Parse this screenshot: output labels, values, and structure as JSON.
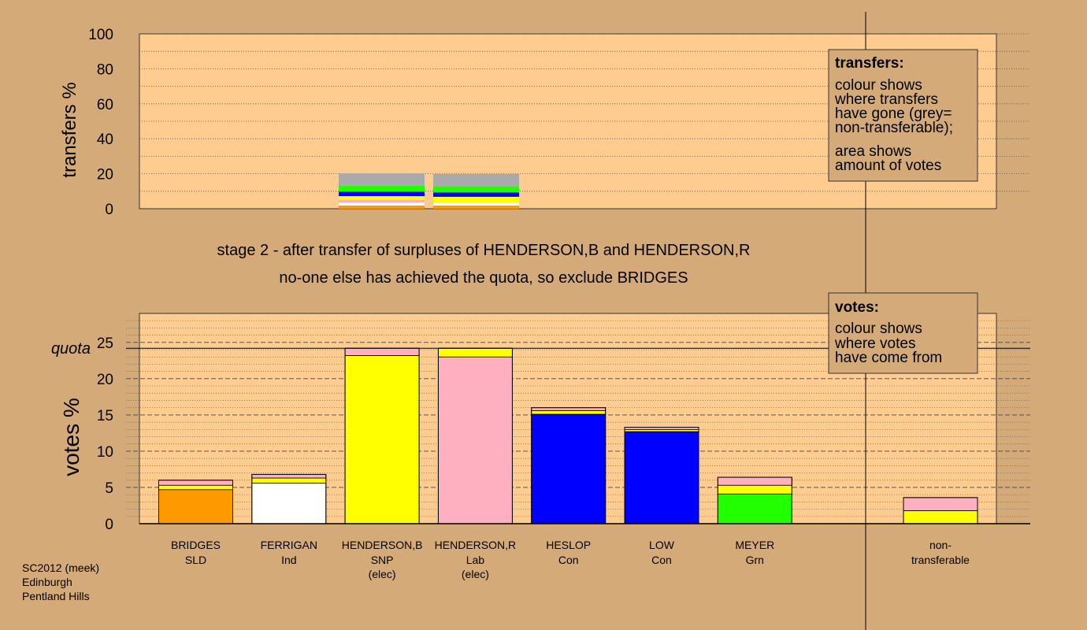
{
  "colors": {
    "background": "#d4aa78",
    "panel": "#ffcc90",
    "legend_box": "#d4aa78",
    "SNP": "#ffff00",
    "Lab": "#ffb0c0",
    "Con": "#0000ff",
    "SLD": "#ff9900",
    "Ind": "#ffffff",
    "Grn": "#22ff00",
    "non_transferable": "#aaaaaa"
  },
  "chart_data": [
    {
      "type": "bar",
      "name": "transfers",
      "ylabel": "transfers %",
      "ylim": [
        0,
        100
      ],
      "yticks": [
        0,
        20,
        40,
        60,
        80,
        100
      ],
      "bars": [
        {
          "candidate": "HENDERSON,B",
          "segments": [
            {
              "party": "SLD",
              "value": 1.8
            },
            {
              "party": "Ind",
              "value": 1.7
            },
            {
              "party": "Lab",
              "value": 1.5
            },
            {
              "party": "SNP",
              "value": 2.2
            },
            {
              "party": "Con",
              "value": 2.5
            },
            {
              "party": "Grn",
              "value": 3.5
            },
            {
              "party": "non_transferable",
              "value": 7.0
            }
          ]
        },
        {
          "candidate": "HENDERSON,R",
          "segments": [
            {
              "party": "SLD",
              "value": 1.8
            },
            {
              "party": "Ind",
              "value": 1.5
            },
            {
              "party": "SNP",
              "value": 3.5
            },
            {
              "party": "Con",
              "value": 2.5
            },
            {
              "party": "Grn",
              "value": 3.5
            },
            {
              "party": "non_transferable",
              "value": 7.0
            }
          ]
        }
      ],
      "legend": {
        "title": "transfers:",
        "lines": [
          "colour shows",
          "where transfers",
          "have gone (grey=",
          "non-transferable);",
          "area shows",
          "amount of votes"
        ]
      }
    },
    {
      "type": "bar",
      "name": "votes",
      "ylabel": "votes %",
      "ylim": [
        0,
        29
      ],
      "yticks": [
        0,
        5,
        10,
        15,
        20,
        25
      ],
      "quota": 24.2,
      "quota_label": "quota",
      "candidates": [
        {
          "name": "BRIDGES",
          "party_label": "SLD",
          "elected": "",
          "segments": [
            {
              "party": "SLD",
              "value": 4.7
            },
            {
              "party": "SNP",
              "value": 0.6
            },
            {
              "party": "Lab",
              "value": 0.7
            }
          ]
        },
        {
          "name": "FERRIGAN",
          "party_label": "Ind",
          "elected": "",
          "segments": [
            {
              "party": "Ind",
              "value": 5.6
            },
            {
              "party": "SNP",
              "value": 0.7
            },
            {
              "party": "Lab",
              "value": 0.5
            }
          ]
        },
        {
          "name": "HENDERSON,B",
          "party_label": "SNP",
          "elected": "(elec)",
          "segments": [
            {
              "party": "SNP",
              "value": 23.2
            },
            {
              "party": "Lab",
              "value": 1.0
            }
          ]
        },
        {
          "name": "HENDERSON,R",
          "party_label": "Lab",
          "elected": "(elec)",
          "segments": [
            {
              "party": "Lab",
              "value": 23.0
            },
            {
              "party": "SNP",
              "value": 1.2
            }
          ]
        },
        {
          "name": "HESLOP",
          "party_label": "Con",
          "elected": "",
          "segments": [
            {
              "party": "Con",
              "value": 15.1
            },
            {
              "party": "SNP",
              "value": 0.5
            },
            {
              "party": "Lab",
              "value": 0.4
            }
          ]
        },
        {
          "name": "LOW",
          "party_label": "Con",
          "elected": "",
          "segments": [
            {
              "party": "Con",
              "value": 12.7
            },
            {
              "party": "SNP",
              "value": 0.3
            },
            {
              "party": "Lab",
              "value": 0.3
            }
          ]
        },
        {
          "name": "MEYER",
          "party_label": "Grn",
          "elected": "",
          "segments": [
            {
              "party": "Grn",
              "value": 4.1
            },
            {
              "party": "SNP",
              "value": 1.2
            },
            {
              "party": "Lab",
              "value": 1.1
            }
          ]
        }
      ],
      "non_transferable": {
        "label_line1": "non-",
        "label_line2": "transferable",
        "segments": [
          {
            "party": "SNP",
            "value": 1.8
          },
          {
            "party": "Lab",
            "value": 1.8
          }
        ]
      },
      "legend": {
        "title": "votes:",
        "lines": [
          "colour shows",
          "where votes",
          "have come from"
        ]
      }
    }
  ],
  "stage_text": {
    "line1": "stage 2 - after transfer of surpluses of HENDERSON,B and HENDERSON,R",
    "line2": "no-one else has achieved the quota, so exclude BRIDGES"
  },
  "footer": {
    "line1": "SC2012 (meek)",
    "line2": "Edinburgh",
    "line3": "Pentland Hills"
  }
}
